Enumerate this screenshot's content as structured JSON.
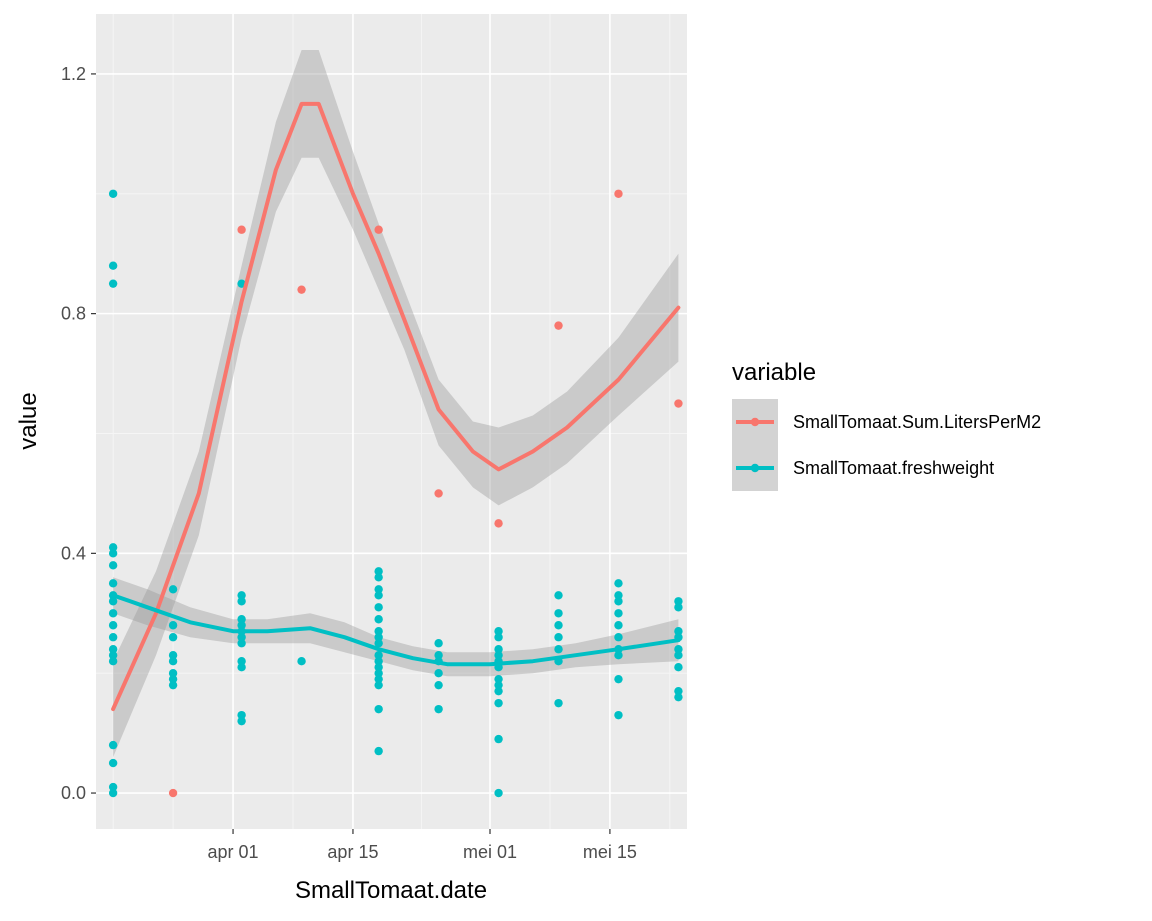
{
  "chart_data": {
    "type": "scatter",
    "xlabel": "SmallTomaat.date",
    "ylabel": "value",
    "xticks": [
      {
        "date": "2020-04-01",
        "label": "apr 01"
      },
      {
        "date": "2020-04-15",
        "label": "apr 15"
      },
      {
        "date": "2020-05-01",
        "label": "mei 01"
      },
      {
        "date": "2020-05-15",
        "label": "mei 15"
      }
    ],
    "yticks": [
      0.0,
      0.4,
      0.8,
      1.2
    ],
    "ytick_labels": [
      "0.0",
      "0.4",
      "0.8",
      "1.2"
    ],
    "xlim": [
      "2020-03-16",
      "2020-05-24"
    ],
    "ylim": [
      -0.06,
      1.3
    ],
    "panel_background": "#ebebeb",
    "grid": true,
    "legend": {
      "title": "variable",
      "position": "right"
    },
    "series": [
      {
        "name": "SmallTomaat.Sum.LitersPerM2",
        "color": "#f8766d",
        "points": [
          {
            "x": "2020-03-25",
            "y": 0.0
          },
          {
            "x": "2020-04-02",
            "y": 0.94
          },
          {
            "x": "2020-04-09",
            "y": 0.84
          },
          {
            "x": "2020-04-18",
            "y": 0.94
          },
          {
            "x": "2020-04-25",
            "y": 0.5
          },
          {
            "x": "2020-05-02",
            "y": 0.45
          },
          {
            "x": "2020-05-09",
            "y": 0.78
          },
          {
            "x": "2020-05-16",
            "y": 1.0
          },
          {
            "x": "2020-05-23",
            "y": 0.65
          }
        ],
        "smooth": [
          {
            "x": "2020-03-18",
            "y": 0.14,
            "lo": 0.06,
            "hi": 0.22
          },
          {
            "x": "2020-03-23",
            "y": 0.3,
            "lo": 0.23,
            "hi": 0.37
          },
          {
            "x": "2020-03-28",
            "y": 0.5,
            "lo": 0.43,
            "hi": 0.57
          },
          {
            "x": "2020-04-02",
            "y": 0.82,
            "lo": 0.76,
            "hi": 0.88
          },
          {
            "x": "2020-04-06",
            "y": 1.04,
            "lo": 0.97,
            "hi": 1.12
          },
          {
            "x": "2020-04-09",
            "y": 1.15,
            "lo": 1.06,
            "hi": 1.24
          },
          {
            "x": "2020-04-11",
            "y": 1.15,
            "lo": 1.06,
            "hi": 1.24
          },
          {
            "x": "2020-04-15",
            "y": 1.0,
            "lo": 0.94,
            "hi": 1.07
          },
          {
            "x": "2020-04-18",
            "y": 0.9,
            "lo": 0.84,
            "hi": 0.95
          },
          {
            "x": "2020-04-21",
            "y": 0.79,
            "lo": 0.74,
            "hi": 0.84
          },
          {
            "x": "2020-04-25",
            "y": 0.64,
            "lo": 0.58,
            "hi": 0.69
          },
          {
            "x": "2020-04-29",
            "y": 0.57,
            "lo": 0.51,
            "hi": 0.62
          },
          {
            "x": "2020-05-02",
            "y": 0.54,
            "lo": 0.48,
            "hi": 0.61
          },
          {
            "x": "2020-05-06",
            "y": 0.57,
            "lo": 0.51,
            "hi": 0.63
          },
          {
            "x": "2020-05-10",
            "y": 0.61,
            "lo": 0.55,
            "hi": 0.67
          },
          {
            "x": "2020-05-16",
            "y": 0.69,
            "lo": 0.63,
            "hi": 0.76
          },
          {
            "x": "2020-05-23",
            "y": 0.81,
            "lo": 0.72,
            "hi": 0.9
          }
        ]
      },
      {
        "name": "SmallTomaat.freshweight",
        "color": "#00bfc4",
        "points": [
          {
            "x": "2020-03-18",
            "y": 1.0
          },
          {
            "x": "2020-03-18",
            "y": 0.88
          },
          {
            "x": "2020-03-18",
            "y": 0.85
          },
          {
            "x": "2020-03-18",
            "y": 0.41
          },
          {
            "x": "2020-03-18",
            "y": 0.4
          },
          {
            "x": "2020-03-18",
            "y": 0.38
          },
          {
            "x": "2020-03-18",
            "y": 0.35
          },
          {
            "x": "2020-03-18",
            "y": 0.33
          },
          {
            "x": "2020-03-18",
            "y": 0.32
          },
          {
            "x": "2020-03-18",
            "y": 0.3
          },
          {
            "x": "2020-03-18",
            "y": 0.28
          },
          {
            "x": "2020-03-18",
            "y": 0.26
          },
          {
            "x": "2020-03-18",
            "y": 0.24
          },
          {
            "x": "2020-03-18",
            "y": 0.23
          },
          {
            "x": "2020-03-18",
            "y": 0.22
          },
          {
            "x": "2020-03-18",
            "y": 0.08
          },
          {
            "x": "2020-03-18",
            "y": 0.05
          },
          {
            "x": "2020-03-18",
            "y": 0.01
          },
          {
            "x": "2020-03-18",
            "y": 0.0
          },
          {
            "x": "2020-03-25",
            "y": 0.34
          },
          {
            "x": "2020-03-25",
            "y": 0.28
          },
          {
            "x": "2020-03-25",
            "y": 0.26
          },
          {
            "x": "2020-03-25",
            "y": 0.23
          },
          {
            "x": "2020-03-25",
            "y": 0.22
          },
          {
            "x": "2020-03-25",
            "y": 0.2
          },
          {
            "x": "2020-03-25",
            "y": 0.19
          },
          {
            "x": "2020-03-25",
            "y": 0.18
          },
          {
            "x": "2020-04-02",
            "y": 0.85
          },
          {
            "x": "2020-04-02",
            "y": 0.33
          },
          {
            "x": "2020-04-02",
            "y": 0.32
          },
          {
            "x": "2020-04-02",
            "y": 0.29
          },
          {
            "x": "2020-04-02",
            "y": 0.28
          },
          {
            "x": "2020-04-02",
            "y": 0.27
          },
          {
            "x": "2020-04-02",
            "y": 0.26
          },
          {
            "x": "2020-04-02",
            "y": 0.25
          },
          {
            "x": "2020-04-02",
            "y": 0.22
          },
          {
            "x": "2020-04-02",
            "y": 0.21
          },
          {
            "x": "2020-04-02",
            "y": 0.13
          },
          {
            "x": "2020-04-02",
            "y": 0.12
          },
          {
            "x": "2020-04-09",
            "y": 0.22
          },
          {
            "x": "2020-04-18",
            "y": 0.37
          },
          {
            "x": "2020-04-18",
            "y": 0.36
          },
          {
            "x": "2020-04-18",
            "y": 0.34
          },
          {
            "x": "2020-04-18",
            "y": 0.33
          },
          {
            "x": "2020-04-18",
            "y": 0.31
          },
          {
            "x": "2020-04-18",
            "y": 0.29
          },
          {
            "x": "2020-04-18",
            "y": 0.27
          },
          {
            "x": "2020-04-18",
            "y": 0.26
          },
          {
            "x": "2020-04-18",
            "y": 0.25
          },
          {
            "x": "2020-04-18",
            "y": 0.23
          },
          {
            "x": "2020-04-18",
            "y": 0.22
          },
          {
            "x": "2020-04-18",
            "y": 0.21
          },
          {
            "x": "2020-04-18",
            "y": 0.2
          },
          {
            "x": "2020-04-18",
            "y": 0.19
          },
          {
            "x": "2020-04-18",
            "y": 0.18
          },
          {
            "x": "2020-04-18",
            "y": 0.14
          },
          {
            "x": "2020-04-18",
            "y": 0.07
          },
          {
            "x": "2020-04-25",
            "y": 0.25
          },
          {
            "x": "2020-04-25",
            "y": 0.23
          },
          {
            "x": "2020-04-25",
            "y": 0.22
          },
          {
            "x": "2020-04-25",
            "y": 0.2
          },
          {
            "x": "2020-04-25",
            "y": 0.18
          },
          {
            "x": "2020-04-25",
            "y": 0.14
          },
          {
            "x": "2020-05-02",
            "y": 0.27
          },
          {
            "x": "2020-05-02",
            "y": 0.26
          },
          {
            "x": "2020-05-02",
            "y": 0.24
          },
          {
            "x": "2020-05-02",
            "y": 0.23
          },
          {
            "x": "2020-05-02",
            "y": 0.22
          },
          {
            "x": "2020-05-02",
            "y": 0.21
          },
          {
            "x": "2020-05-02",
            "y": 0.19
          },
          {
            "x": "2020-05-02",
            "y": 0.18
          },
          {
            "x": "2020-05-02",
            "y": 0.17
          },
          {
            "x": "2020-05-02",
            "y": 0.15
          },
          {
            "x": "2020-05-02",
            "y": 0.09
          },
          {
            "x": "2020-05-02",
            "y": 0.0
          },
          {
            "x": "2020-05-09",
            "y": 0.33
          },
          {
            "x": "2020-05-09",
            "y": 0.3
          },
          {
            "x": "2020-05-09",
            "y": 0.28
          },
          {
            "x": "2020-05-09",
            "y": 0.26
          },
          {
            "x": "2020-05-09",
            "y": 0.24
          },
          {
            "x": "2020-05-09",
            "y": 0.22
          },
          {
            "x": "2020-05-09",
            "y": 0.15
          },
          {
            "x": "2020-05-16",
            "y": 0.35
          },
          {
            "x": "2020-05-16",
            "y": 0.33
          },
          {
            "x": "2020-05-16",
            "y": 0.32
          },
          {
            "x": "2020-05-16",
            "y": 0.3
          },
          {
            "x": "2020-05-16",
            "y": 0.28
          },
          {
            "x": "2020-05-16",
            "y": 0.26
          },
          {
            "x": "2020-05-16",
            "y": 0.24
          },
          {
            "x": "2020-05-16",
            "y": 0.23
          },
          {
            "x": "2020-05-16",
            "y": 0.19
          },
          {
            "x": "2020-05-16",
            "y": 0.13
          },
          {
            "x": "2020-05-23",
            "y": 0.32
          },
          {
            "x": "2020-05-23",
            "y": 0.31
          },
          {
            "x": "2020-05-23",
            "y": 0.27
          },
          {
            "x": "2020-05-23",
            "y": 0.26
          },
          {
            "x": "2020-05-23",
            "y": 0.24
          },
          {
            "x": "2020-05-23",
            "y": 0.23
          },
          {
            "x": "2020-05-23",
            "y": 0.21
          },
          {
            "x": "2020-05-23",
            "y": 0.17
          },
          {
            "x": "2020-05-23",
            "y": 0.16
          }
        ],
        "smooth": [
          {
            "x": "2020-03-18",
            "y": 0.33,
            "lo": 0.3,
            "hi": 0.36
          },
          {
            "x": "2020-03-22",
            "y": 0.31,
            "lo": 0.28,
            "hi": 0.34
          },
          {
            "x": "2020-03-27",
            "y": 0.285,
            "lo": 0.26,
            "hi": 0.31
          },
          {
            "x": "2020-04-01",
            "y": 0.27,
            "lo": 0.25,
            "hi": 0.29
          },
          {
            "x": "2020-04-05",
            "y": 0.27,
            "lo": 0.25,
            "hi": 0.29
          },
          {
            "x": "2020-04-10",
            "y": 0.275,
            "lo": 0.25,
            "hi": 0.3
          },
          {
            "x": "2020-04-14",
            "y": 0.26,
            "lo": 0.235,
            "hi": 0.285
          },
          {
            "x": "2020-04-18",
            "y": 0.24,
            "lo": 0.22,
            "hi": 0.26
          },
          {
            "x": "2020-04-22",
            "y": 0.225,
            "lo": 0.205,
            "hi": 0.245
          },
          {
            "x": "2020-04-26",
            "y": 0.215,
            "lo": 0.195,
            "hi": 0.235
          },
          {
            "x": "2020-05-01",
            "y": 0.215,
            "lo": 0.195,
            "hi": 0.235
          },
          {
            "x": "2020-05-06",
            "y": 0.22,
            "lo": 0.2,
            "hi": 0.24
          },
          {
            "x": "2020-05-11",
            "y": 0.23,
            "lo": 0.21,
            "hi": 0.25
          },
          {
            "x": "2020-05-16",
            "y": 0.24,
            "lo": 0.215,
            "hi": 0.265
          },
          {
            "x": "2020-05-23",
            "y": 0.255,
            "lo": 0.22,
            "hi": 0.29
          }
        ]
      }
    ]
  }
}
